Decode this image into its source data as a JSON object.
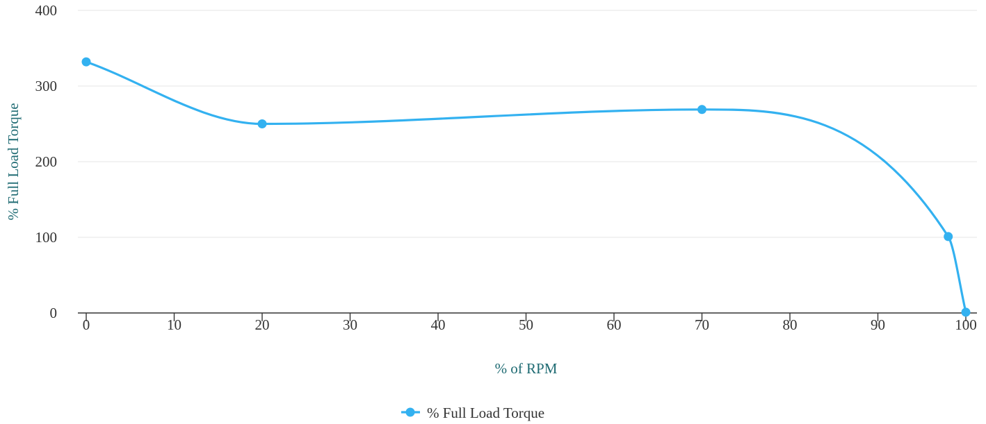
{
  "chart_data": {
    "type": "line",
    "smooth": true,
    "xlabel": "% of RPM",
    "ylabel": "% Full Load Torque",
    "xlim": [
      0,
      100
    ],
    "ylim": [
      0,
      400
    ],
    "x_ticks": [
      0,
      10,
      20,
      30,
      40,
      50,
      60,
      70,
      80,
      90,
      100
    ],
    "y_ticks": [
      0,
      100,
      200,
      300,
      400
    ],
    "grid": "horizontal",
    "legend_position": "bottom-center",
    "series": [
      {
        "name": "% Full Load Torque",
        "color": "#33b1f0",
        "x": [
          0,
          20,
          70,
          98,
          100
        ],
        "values": [
          332,
          250,
          269,
          101,
          1
        ]
      }
    ]
  }
}
